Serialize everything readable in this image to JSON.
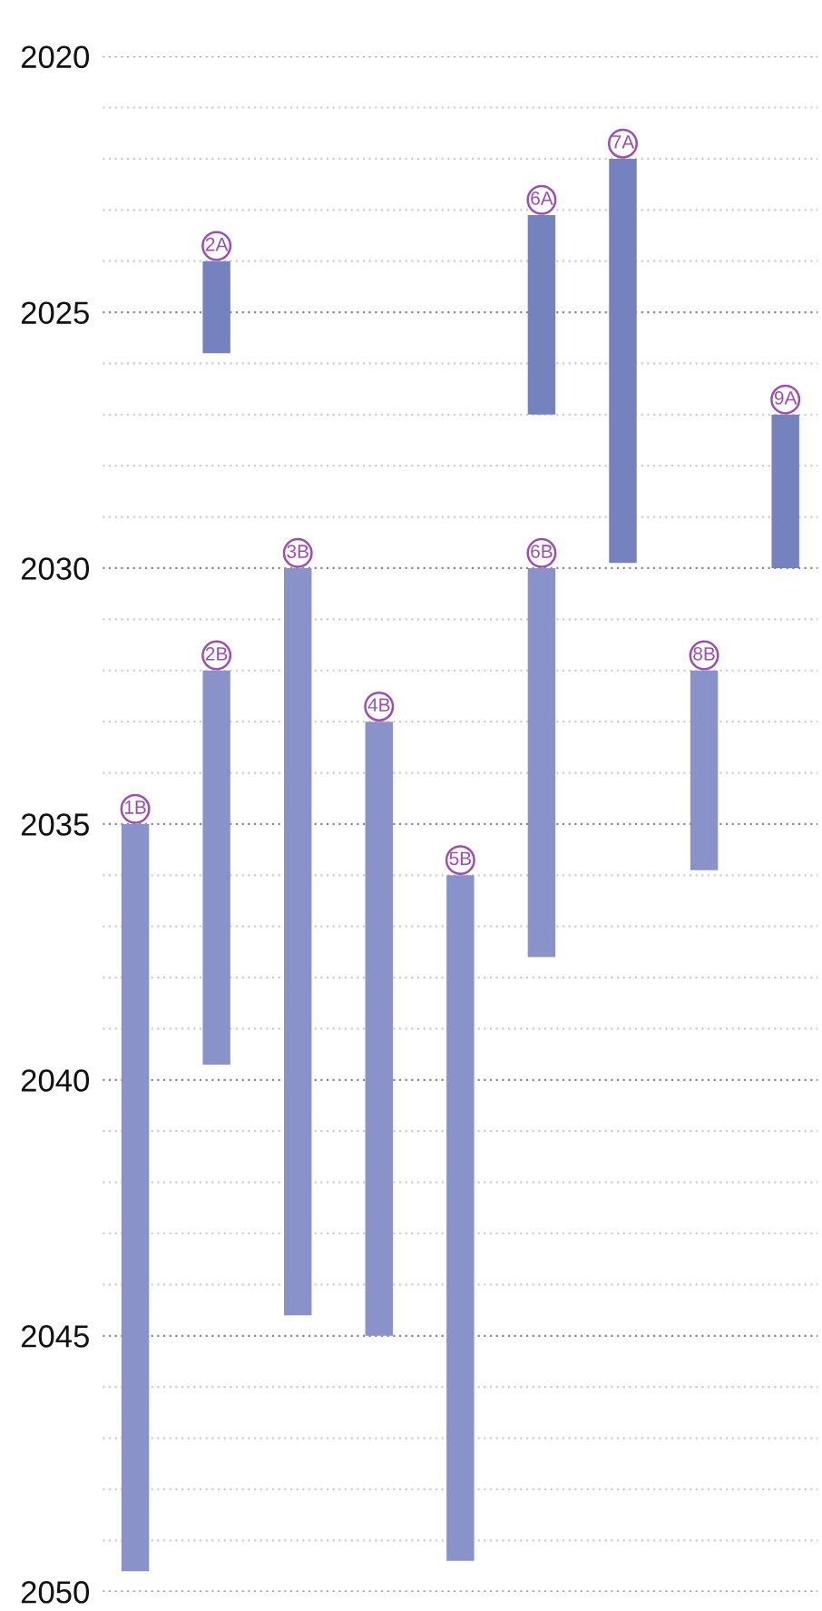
{
  "chart_data": {
    "type": "bar",
    "categories": [
      null,
      null,
      null,
      null,
      null,
      null,
      null,
      null,
      null
    ],
    "series": [
      {
        "name": "1B",
        "color": "#8a93c9",
        "base": [
          2035,
          null,
          null,
          null,
          null,
          null,
          null,
          null,
          null
        ],
        "values": [
          14.6,
          null,
          null,
          null,
          null,
          null,
          null,
          null,
          null
        ]
      },
      {
        "name": "2A",
        "color": "#7482be",
        "base": [
          null,
          2024,
          null,
          null,
          null,
          null,
          null,
          null,
          null
        ],
        "values": [
          null,
          1.8,
          null,
          null,
          null,
          null,
          null,
          null,
          null
        ]
      },
      {
        "name": "2B",
        "color": "#8a93c9",
        "base": [
          null,
          2032,
          null,
          null,
          null,
          null,
          null,
          null,
          null
        ],
        "values": [
          null,
          7.7,
          null,
          null,
          null,
          null,
          null,
          null,
          null
        ]
      },
      {
        "name": "3B",
        "color": "#8a93c9",
        "base": [
          null,
          null,
          2030,
          null,
          null,
          null,
          null,
          null,
          null
        ],
        "values": [
          null,
          null,
          14.6,
          null,
          null,
          null,
          null,
          null,
          null
        ]
      },
      {
        "name": "4B",
        "color": "#8a93c9",
        "base": [
          null,
          null,
          null,
          2033,
          null,
          null,
          null,
          null,
          null
        ],
        "values": [
          null,
          null,
          null,
          12,
          null,
          null,
          null,
          null,
          null
        ]
      },
      {
        "name": "5B",
        "color": "#8a93c9",
        "base": [
          null,
          null,
          null,
          null,
          2036,
          null,
          null,
          null,
          null
        ],
        "values": [
          null,
          null,
          null,
          null,
          13.4,
          null,
          null,
          null,
          null
        ]
      },
      {
        "name": "6A",
        "color": "#7482be",
        "base": [
          null,
          null,
          null,
          null,
          null,
          2023.1,
          null,
          null,
          null
        ],
        "values": [
          null,
          null,
          null,
          null,
          null,
          3.9,
          null,
          null,
          null
        ]
      },
      {
        "name": "6B",
        "color": "#8a93c9",
        "base": [
          null,
          null,
          null,
          null,
          null,
          2030,
          null,
          null,
          null
        ],
        "values": [
          null,
          null,
          null,
          null,
          null,
          7.6,
          null,
          null,
          null
        ]
      },
      {
        "name": "7A",
        "color": "#7482be",
        "base": [
          null,
          null,
          null,
          null,
          null,
          null,
          2022,
          null,
          null
        ],
        "values": [
          null,
          null,
          null,
          null,
          null,
          null,
          7.9,
          null,
          null
        ]
      },
      {
        "name": "8B",
        "color": "#8a93c9",
        "base": [
          null,
          null,
          null,
          null,
          null,
          null,
          null,
          2032,
          null
        ],
        "values": [
          null,
          null,
          null,
          null,
          null,
          null,
          null,
          3.9,
          null
        ]
      },
      {
        "name": "9A",
        "color": "#7482be",
        "base": [
          null,
          null,
          null,
          null,
          null,
          null,
          null,
          null,
          2027
        ],
        "values": [
          null,
          null,
          null,
          null,
          null,
          null,
          null,
          null,
          3
        ]
      }
    ],
    "ylim": [
      2050,
      2020
    ],
    "yticks": [
      2020,
      {
        "value": 2021,
        "label": null
      },
      {
        "value": 2022,
        "label": null
      },
      {
        "value": 2023,
        "label": null
      },
      {
        "value": 2024,
        "label": null
      },
      2025,
      {
        "value": 2026,
        "label": null
      },
      {
        "value": 2027,
        "label": null
      },
      {
        "value": 2028,
        "label": null
      },
      {
        "value": 2029,
        "label": null
      },
      2030,
      {
        "value": 2031,
        "label": null
      },
      {
        "value": 2032,
        "label": null
      },
      {
        "value": 2033,
        "label": null
      },
      {
        "value": 2034,
        "label": null
      },
      2035,
      {
        "value": 2036,
        "label": null
      },
      {
        "value": 2037,
        "label": null
      },
      {
        "value": 2038,
        "label": null
      },
      {
        "value": 2039,
        "label": null
      },
      2040,
      {
        "value": 2041,
        "label": null
      },
      {
        "value": 2042,
        "label": null
      },
      {
        "value": 2043,
        "label": null
      },
      {
        "value": 2044,
        "label": null
      },
      2045,
      {
        "value": 2046,
        "label": null
      },
      {
        "value": 2047,
        "label": null
      },
      {
        "value": 2048,
        "label": null
      },
      {
        "value": 2049,
        "label": null
      },
      2050
    ],
    "grid": "y",
    "legend": false
  }
}
